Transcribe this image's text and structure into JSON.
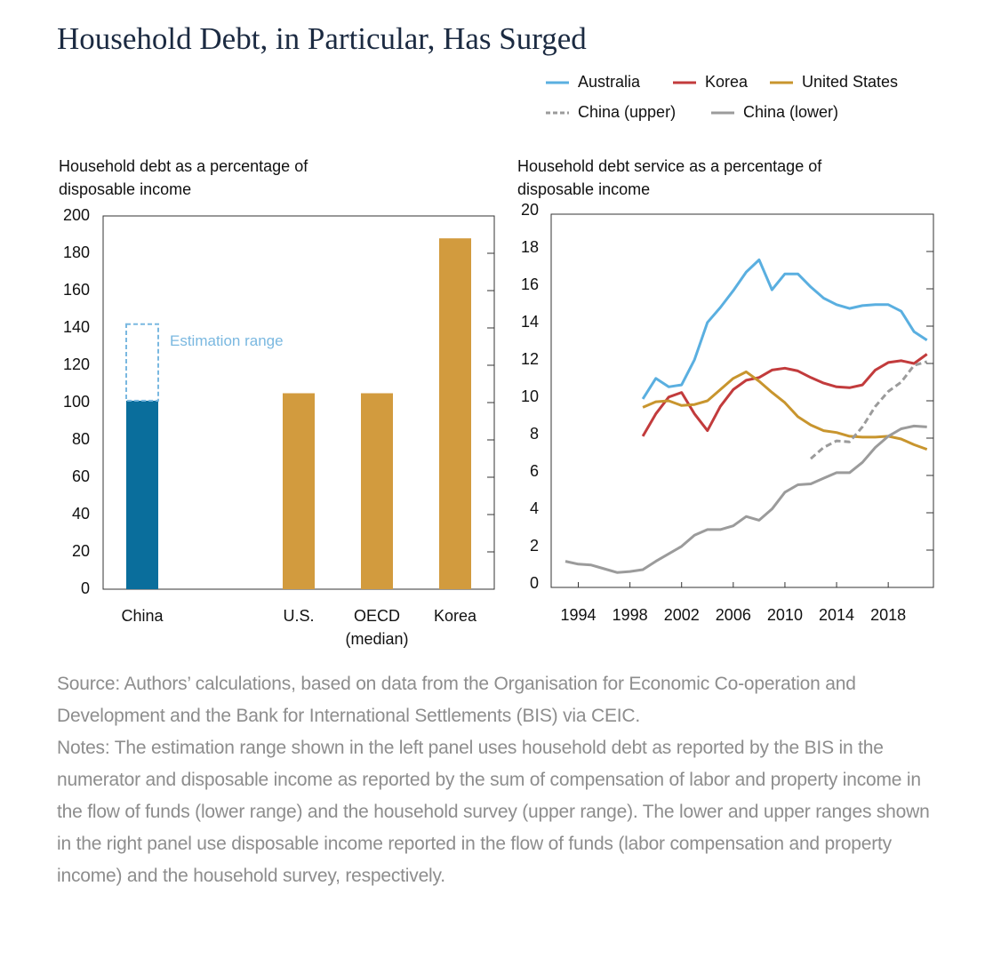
{
  "title": "Household Debt, in Particular, Has Surged",
  "chart_data": [
    {
      "type": "bar",
      "axis_label": "Household debt as a percentage of disposable income",
      "categories": [
        "China",
        null,
        "U.S.",
        "OECD\n(median)",
        "Korea"
      ],
      "values": [
        101,
        null,
        105,
        105,
        188
      ],
      "colors": [
        "#0a6e9c",
        null,
        "#d29b3e",
        "#d29b3e",
        "#d29b3e"
      ],
      "estimation_range": {
        "category": "China",
        "label": "Estimation range",
        "values": [
          101,
          142
        ],
        "color": "#7ab8e0"
      },
      "ylim": [
        0,
        200
      ],
      "yticks": [
        0,
        20,
        40,
        60,
        80,
        100,
        120,
        140,
        160,
        180,
        200
      ]
    },
    {
      "type": "line",
      "axis_label": "Household debt service as a percentage of disposable income",
      "x": [
        1993,
        1994,
        1995,
        1996,
        1997,
        1998,
        1999,
        2000,
        2001,
        2002,
        2003,
        2004,
        2005,
        2006,
        2007,
        2008,
        2009,
        2010,
        2011,
        2012,
        2013,
        2014,
        2015,
        2016,
        2017,
        2018,
        2019,
        2020,
        2021
      ],
      "series": [
        {
          "name": "Australia",
          "color": "#5aafe0",
          "dashed": false,
          "values": [
            null,
            null,
            null,
            null,
            null,
            null,
            10.1,
            11.2,
            10.75,
            10.85,
            12.2,
            14.2,
            15.0,
            15.9,
            16.9,
            17.55,
            15.95,
            16.8,
            16.8,
            16.1,
            15.5,
            15.15,
            14.95,
            15.1,
            15.15,
            15.15,
            14.8,
            13.7,
            13.25
          ]
        },
        {
          "name": "Korea",
          "color": "#c23b3c",
          "dashed": false,
          "values": [
            null,
            null,
            null,
            null,
            null,
            null,
            8.1,
            9.3,
            10.2,
            10.45,
            9.3,
            8.4,
            9.7,
            10.6,
            11.1,
            11.25,
            11.65,
            11.75,
            11.6,
            11.25,
            10.95,
            10.75,
            10.7,
            10.85,
            11.65,
            12.05,
            12.15,
            12.0,
            12.5
          ]
        },
        {
          "name": "United States",
          "color": "#c8952e",
          "dashed": false,
          "values": [
            null,
            null,
            null,
            null,
            null,
            null,
            9.65,
            9.95,
            10.0,
            9.75,
            9.8,
            10.0,
            10.6,
            11.2,
            11.55,
            11.05,
            10.45,
            9.9,
            9.15,
            8.7,
            8.4,
            8.3,
            8.1,
            8.05,
            8.05,
            8.1,
            7.95,
            7.65,
            7.4
          ]
        },
        {
          "name": "China (upper)",
          "color": "#9b9b9b",
          "dashed": true,
          "values": [
            null,
            null,
            null,
            null,
            null,
            null,
            null,
            null,
            null,
            null,
            null,
            null,
            null,
            null,
            null,
            null,
            null,
            null,
            null,
            6.9,
            7.5,
            7.85,
            7.8,
            8.6,
            9.7,
            10.5,
            11.0,
            11.9,
            12.1
          ]
        },
        {
          "name": "China (lower)",
          "color": "#9b9b9b",
          "dashed": false,
          "values": [
            1.4,
            1.25,
            1.2,
            1.0,
            0.8,
            0.85,
            0.95,
            1.4,
            1.8,
            2.2,
            2.8,
            3.1,
            3.1,
            3.3,
            3.8,
            3.6,
            4.2,
            5.1,
            5.5,
            5.55,
            5.85,
            6.15,
            6.15,
            6.7,
            7.5,
            8.1,
            8.5,
            8.65,
            8.6
          ]
        }
      ],
      "xlim": [
        1991.9,
        2021.5
      ],
      "xticks": [
        1994,
        1998,
        2002,
        2006,
        2010,
        2014,
        2018
      ],
      "ylim": [
        0,
        20
      ],
      "yticks": [
        0,
        2,
        4,
        6,
        8,
        10,
        12,
        14,
        16,
        18,
        20
      ]
    }
  ],
  "source": "Source: Authors’ calculations, based on data from the Organisation for Economic Co-operation and Development and the Bank for International Settlements (BIS) via CEIC.",
  "notes": "Notes: The estimation range shown in the left panel uses household debt as reported by the BIS in the numerator and disposable income as reported by the sum of compensation of labor and property income in the flow of funds (lower range) and the household survey (upper range). The lower and upper ranges shown in the right panel use disposable income reported in the flow of funds (labor compensation and property income) and the household survey, respectively."
}
